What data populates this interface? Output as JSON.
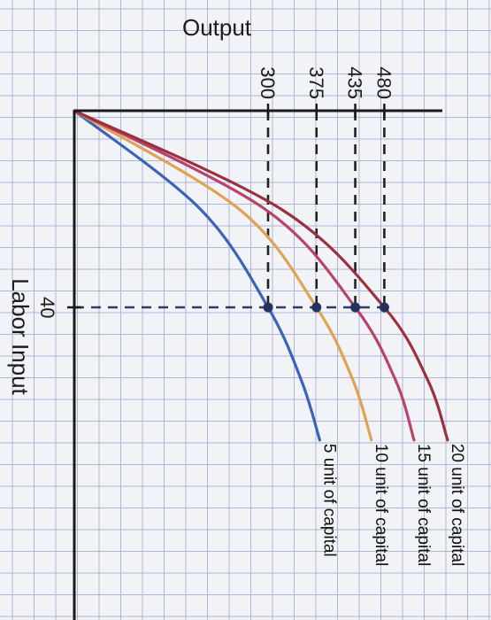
{
  "chart_data": {
    "type": "line",
    "orientation": "rotated-90-clockwise",
    "xlabel": "Labor Input",
    "ylabel": "Output",
    "x_ticks": [
      {
        "value": 40,
        "label": "40"
      }
    ],
    "y_ticks": [
      {
        "value": 300,
        "label": "300"
      },
      {
        "value": 375,
        "label": "375"
      },
      {
        "value": 435,
        "label": "435"
      },
      {
        "value": 480,
        "label": "480"
      }
    ],
    "grid": true,
    "series": [
      {
        "name": "5 unit of capital",
        "color": "#3b64b8",
        "points": [
          [
            0,
            0
          ],
          [
            20,
            195
          ],
          [
            40,
            300
          ],
          [
            55,
            352
          ],
          [
            67,
            380
          ]
        ]
      },
      {
        "name": "10 unit of capital",
        "color": "#e0a254",
        "points": [
          [
            0,
            0
          ],
          [
            20,
            255
          ],
          [
            40,
            375
          ],
          [
            55,
            432
          ],
          [
            67,
            460
          ]
        ]
      },
      {
        "name": "15 unit of capital",
        "color": "#b8436c",
        "points": [
          [
            0,
            0
          ],
          [
            20,
            295
          ],
          [
            40,
            435
          ],
          [
            55,
            498
          ],
          [
            67,
            526
          ]
        ]
      },
      {
        "name": "20 unit of capital",
        "color": "#9b3140",
        "points": [
          [
            0,
            0
          ],
          [
            20,
            320
          ],
          [
            40,
            480
          ],
          [
            55,
            548
          ],
          [
            67,
            578
          ]
        ]
      }
    ],
    "markers": [
      {
        "x": 40,
        "y": 300
      },
      {
        "x": 40,
        "y": 375
      },
      {
        "x": 40,
        "y": 435
      },
      {
        "x": 40,
        "y": 480
      }
    ]
  }
}
